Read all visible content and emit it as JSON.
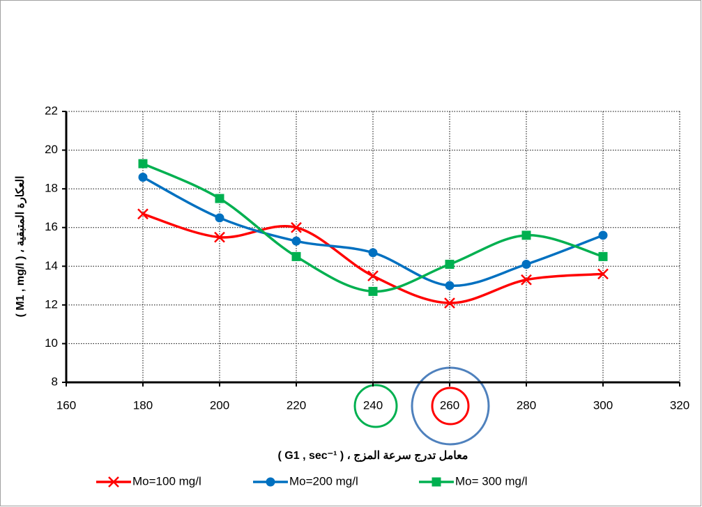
{
  "chart_data": {
    "type": "line",
    "x": [
      180,
      200,
      220,
      240,
      260,
      280,
      300
    ],
    "series": [
      {
        "name": "Mo=100 mg/l",
        "color": "#ff0000",
        "marker": "x",
        "values": [
          16.7,
          15.5,
          16.0,
          13.5,
          12.1,
          13.3,
          13.6
        ]
      },
      {
        "name": "Mo=200 mg/l",
        "color": "#0070c0",
        "marker": "circle",
        "values": [
          18.6,
          16.5,
          15.3,
          14.7,
          13.0,
          14.1,
          15.6
        ]
      },
      {
        "name": "Mo= 300 mg/l",
        "color": "#00b050",
        "marker": "square",
        "values": [
          19.3,
          17.5,
          14.5,
          12.7,
          14.1,
          15.6,
          14.5
        ]
      }
    ],
    "xlabel": "معامل تدرج سرعة المزج ، ( G1 , sec⁻¹ )",
    "ylabel": "العكارة المتبقية ، ( M1 , mg/l )",
    "xlim": [
      160,
      320
    ],
    "xticks": [
      160,
      180,
      200,
      220,
      240,
      260,
      280,
      300,
      320
    ],
    "ylim": [
      8,
      22
    ],
    "yticks": [
      8,
      10,
      12,
      14,
      16,
      18,
      20,
      22
    ],
    "grid": true,
    "legend": "bottom"
  }
}
